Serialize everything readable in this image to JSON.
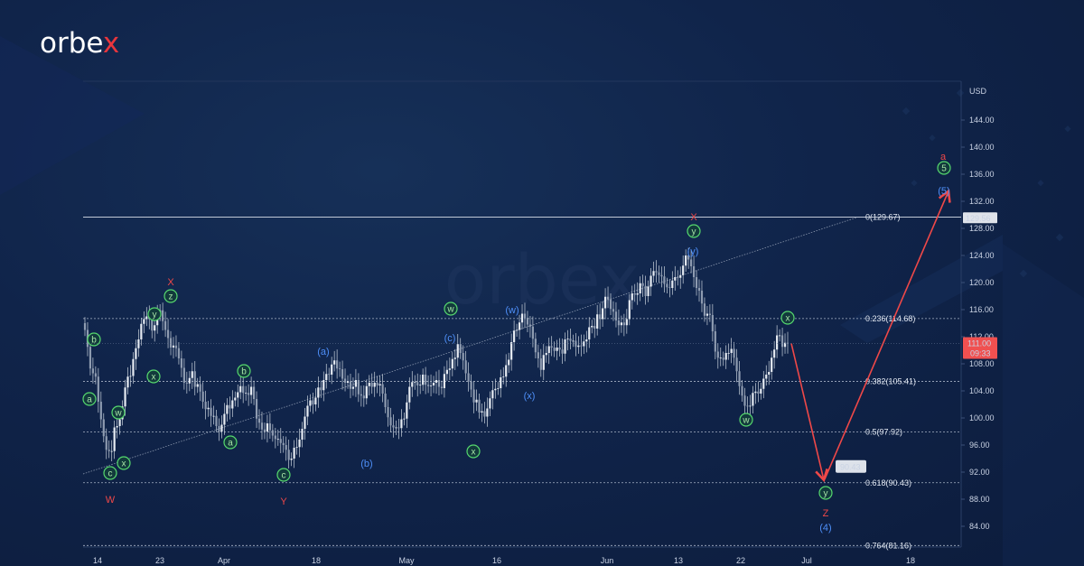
{
  "brand": {
    "name_prefix": "orbe",
    "name_x": "x"
  },
  "chart_data": {
    "type": "line",
    "title": "",
    "xlabel": "",
    "ylabel": "USD",
    "ylim": [
      80,
      148
    ],
    "y_ticks": [
      "144.00",
      "140.00",
      "136.00",
      "132.00",
      "128.00",
      "124.00",
      "120.00",
      "116.00",
      "112.00",
      "108.00",
      "104.00",
      "100.00",
      "96.00",
      "92.00",
      "88.00",
      "84.00"
    ],
    "x_ticks": [
      "14",
      "23",
      "Apr",
      "18",
      "May",
      "16",
      "Jun",
      "13",
      "22",
      "Jul",
      "18"
    ],
    "price_tag": {
      "price": 111.0,
      "label": "111.00",
      "timer": "09:33",
      "color": "#f05050"
    },
    "level_tag": {
      "price": 129.56,
      "label": "129.56"
    },
    "target_tag": {
      "price": 90.43,
      "label": "90.43"
    },
    "fib_levels": [
      {
        "ratio": "0",
        "value": 129.67,
        "label": "0(129.67)"
      },
      {
        "ratio": "0.236",
        "value": 114.68,
        "label": "0.236(114.68)"
      },
      {
        "ratio": "0.382",
        "value": 105.41,
        "label": "0.382(105.41)"
      },
      {
        "ratio": "0.5",
        "value": 97.92,
        "label": "0.5(97.92)"
      },
      {
        "ratio": "0.618",
        "value": 90.43,
        "label": "0.618(90.43)"
      },
      {
        "ratio": "0.764",
        "value": 81.16,
        "label": "0.764(81.16)"
      }
    ],
    "series": [
      {
        "type": "candles",
        "color": "#c9d2dc",
        "close": [
          113,
          110.5,
          107.3,
          106.6,
          106.1,
          102.4,
          99.8,
          97.3,
          95.3,
          95.1,
          95.1,
          98.6,
          98.8,
          99.8,
          101.7,
          104.5,
          106.1,
          106.2,
          108.7,
          110.3,
          111.6,
          113.9,
          114.6,
          115,
          114.6,
          112.9,
          113.7,
          115.2,
          115.9,
          114.3,
          113,
          111.8,
          110.4,
          110.7,
          110.3,
          108.8,
          107.4,
          105.2,
          105.1,
          105.9,
          106.9,
          104.6,
          105,
          103.9,
          102.4,
          101.3,
          101.5,
          100.3,
          100.3,
          98.8,
          98,
          99,
          100.6,
          101.9,
          101.4,
          102.6,
          103,
          103.8,
          104.7,
          103.7,
          103.7,
          103.4,
          104.6,
          102.8,
          99.9,
          99.3,
          98.3,
          98,
          99.2,
          98.2,
          97.4,
          96.9,
          96.9,
          96.3,
          96,
          95.3,
          93.8,
          94,
          95.6,
          95.7,
          96.8,
          98.4,
          100.2,
          101.8,
          102.6,
          102,
          103,
          104.5,
          104.1,
          105.6,
          106.5,
          106.4,
          107.9,
          108.5,
          107.3,
          107.2,
          105.8,
          105.2,
          105.4,
          104.3,
          104.6,
          105.6,
          103.5,
          103.3,
          102.9,
          104.7,
          105.2,
          104.6,
          105.2,
          104.8,
          105,
          103.6,
          101.6,
          100.1,
          98.9,
          98.6,
          98.6,
          98.5,
          99.8,
          99.9,
          102.3,
          104.6,
          105.3,
          105.3,
          104.8,
          104.9,
          106.4,
          104.9,
          104.7,
          104.8,
          105.2,
          105.6,
          104.6,
          104.4,
          106.5,
          107.1,
          107.3,
          108.7,
          108.9,
          110.9,
          109.6,
          108.5,
          106.6,
          105.4,
          104.2,
          102.3,
          102.7,
          100.8,
          101,
          100.2,
          101.4,
          102.9,
          104.1,
          104.3,
          104.4,
          106,
          106.1,
          107.8,
          108.6,
          111.2,
          112.9,
          113,
          114.1,
          115.4,
          114.8,
          113.8,
          113.5,
          111.7,
          109.7,
          108.8,
          107.1,
          109.3,
          109.6,
          110.6,
          110.4,
          109.9,
          110.4,
          110.1,
          109.5,
          111.6,
          111.7,
          111.4,
          111.4,
          110.5,
          110.7,
          110.6,
          111.3,
          111.6,
          113.4,
          113.6,
          113.2,
          115.3,
          114.6,
          116.2,
          117.9,
          117.5,
          116.1,
          115.7,
          114.4,
          113.7,
          114.1,
          113.7,
          114.6,
          117.4,
          118.4,
          118.2,
          118.4,
          119.9,
          119.5,
          118,
          119.4,
          121,
          121.7,
          121.5,
          121.1,
          120.9,
          119.8,
          119.3,
          119.2,
          120.3,
          120.8,
          120.7,
          121.1,
          122.5,
          124,
          123.4,
          122.4,
          120.8,
          119.2,
          118.8,
          116.9,
          115.1,
          115.4,
          115.2,
          112.8,
          109.8,
          108.9,
          108.9,
          108.6,
          109.6,
          109.6,
          110.2,
          108.9,
          106.9,
          104.7,
          103.3,
          101.8,
          101.7,
          101.8,
          103.7,
          103.9,
          103.6,
          104.3,
          105.8,
          106.4,
          106.8,
          108.9,
          110.1,
          112.2,
          112.2,
          110.5,
          111.1,
          111
        ]
      }
    ],
    "annotations": [
      {
        "text": "a",
        "color": "#56d86e",
        "circled": true
      },
      {
        "text": "b",
        "color": "#56d86e",
        "circled": true
      },
      {
        "text": "c",
        "color": "#56d86e",
        "circled": true
      },
      {
        "text": "w",
        "color": "#56d86e",
        "circled": true
      },
      {
        "text": "x",
        "color": "#56d86e",
        "circled": true
      },
      {
        "text": "x",
        "color": "#56d86e",
        "circled": true
      },
      {
        "text": "y",
        "color": "#56d86e",
        "circled": true
      },
      {
        "text": "z",
        "color": "#56d86e",
        "circled": true
      },
      {
        "text": "W",
        "color": "#ef4848",
        "circled": false
      },
      {
        "text": "X",
        "color": "#ef4848",
        "circled": false
      },
      {
        "text": "a",
        "color": "#56d86e",
        "circled": true
      },
      {
        "text": "b",
        "color": "#56d86e",
        "circled": true
      },
      {
        "text": "c",
        "color": "#56d86e",
        "circled": true
      },
      {
        "text": "Y",
        "color": "#ef4848",
        "circled": false
      },
      {
        "text": "(a)",
        "color": "#4e8ff8",
        "circled": false
      },
      {
        "text": "(b)",
        "color": "#4e8ff8",
        "circled": false
      },
      {
        "text": "(c)",
        "color": "#4e8ff8",
        "circled": false
      },
      {
        "text": "w",
        "color": "#56d86e",
        "circled": true
      },
      {
        "text": "x",
        "color": "#56d86e",
        "circled": true
      },
      {
        "text": "(w)",
        "color": "#4e8ff8",
        "circled": false
      },
      {
        "text": "(x)",
        "color": "#4e8ff8",
        "circled": false
      },
      {
        "text": "y",
        "color": "#56d86e",
        "circled": true
      },
      {
        "text": "(y)",
        "color": "#4e8ff8",
        "circled": false
      },
      {
        "text": "X",
        "color": "#ef4848",
        "circled": false
      },
      {
        "text": "w",
        "color": "#56d86e",
        "circled": true
      },
      {
        "text": "x",
        "color": "#56d86e",
        "circled": true
      },
      {
        "text": "y",
        "color": "#56d86e",
        "circled": true
      },
      {
        "text": "Z",
        "color": "#ef4848",
        "circled": false
      },
      {
        "text": "(4)",
        "color": "#4e8ff8",
        "circled": false
      },
      {
        "text": "a",
        "color": "#ef4848",
        "circled": false
      },
      {
        "text": "5",
        "color": "#56d86e",
        "circled": true
      },
      {
        "text": "(5)",
        "color": "#4e8ff8",
        "circled": false
      }
    ],
    "forecast_path": {
      "color": "#ef4848",
      "points": [
        111.0,
        90.43,
        133.5
      ]
    },
    "grid": true,
    "legend": "none"
  }
}
